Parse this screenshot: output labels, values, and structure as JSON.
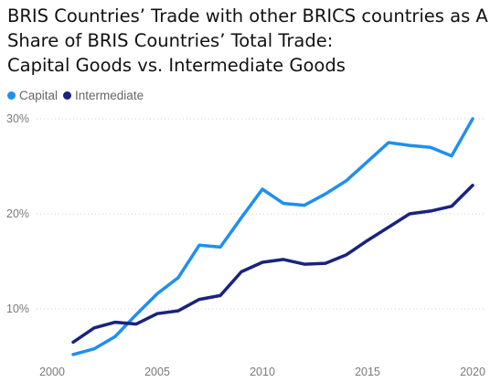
{
  "title_lines": [
    "BRIS Countries’ Trade with other BRICS countries as A",
    "Share of BRIS Countries’ Total Trade:",
    "Capital Goods vs. Intermediate Goods"
  ],
  "legend": [
    {
      "label": "Capital",
      "color": "#1f8fef"
    },
    {
      "label": "Intermediate",
      "color": "#1a237e"
    }
  ],
  "chart_data": {
    "type": "line",
    "title": "BRIS Countries’ Trade with other BRICS countries as A Share of BRIS Countries’ Total Trade: Capital Goods vs. Intermediate Goods",
    "xlabel": "",
    "ylabel": "",
    "x": [
      2001,
      2002,
      2003,
      2004,
      2005,
      2006,
      2007,
      2008,
      2009,
      2010,
      2011,
      2012,
      2013,
      2014,
      2015,
      2016,
      2017,
      2018,
      2019,
      2020
    ],
    "series": [
      {
        "name": "Capital",
        "color": "#1f8fef",
        "values": [
          5.2,
          5.8,
          7.1,
          9.4,
          11.6,
          13.3,
          16.7,
          16.5,
          19.6,
          22.6,
          21.1,
          20.9,
          22.1,
          23.5,
          25.5,
          27.5,
          27.2,
          27.0,
          26.1,
          30.0
        ]
      },
      {
        "name": "Intermediate",
        "color": "#1a237e",
        "values": [
          6.5,
          8.0,
          8.6,
          8.4,
          9.5,
          9.8,
          11.0,
          11.4,
          13.9,
          14.9,
          15.2,
          14.7,
          14.8,
          15.7,
          17.2,
          18.6,
          20.0,
          20.3,
          20.8,
          23.0
        ]
      }
    ],
    "xticks": [
      2000,
      2005,
      2010,
      2015,
      2020
    ],
    "xtick_labels": [
      "2000",
      "2005",
      "2010",
      "2015",
      "2020"
    ],
    "yticks": [
      10,
      20,
      30
    ],
    "ytick_labels": [
      "10%",
      "20%",
      "30%"
    ],
    "xlim": [
      2000,
      2020
    ],
    "ylim": [
      0,
      30
    ],
    "grid": "horizontal dotted",
    "legend_position": "top-left"
  }
}
